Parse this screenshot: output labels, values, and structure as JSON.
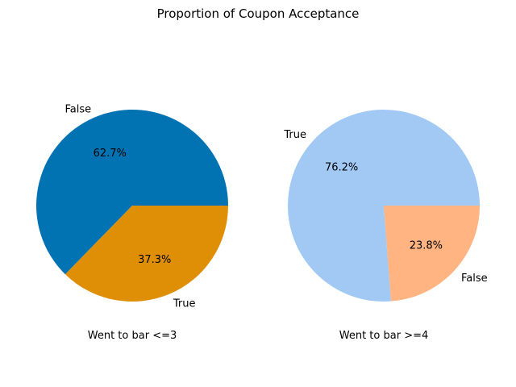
{
  "figure": {
    "title": "Proportion of Coupon Acceptance"
  },
  "chart_data": [
    {
      "type": "pie",
      "xlabel": "Went to bar <=3",
      "slices": [
        {
          "label": "False",
          "value": 62.7,
          "pct_label": "62.7%",
          "color": "#0173b2"
        },
        {
          "label": "True",
          "value": 37.3,
          "pct_label": "37.3%",
          "color": "#de8f05"
        }
      ]
    },
    {
      "type": "pie",
      "xlabel": "Went to bar >=4",
      "slices": [
        {
          "label": "True",
          "value": 76.2,
          "pct_label": "76.2%",
          "color": "#a1c9f4"
        },
        {
          "label": "False",
          "value": 23.8,
          "pct_label": "23.8%",
          "color": "#ffb482"
        }
      ]
    }
  ]
}
